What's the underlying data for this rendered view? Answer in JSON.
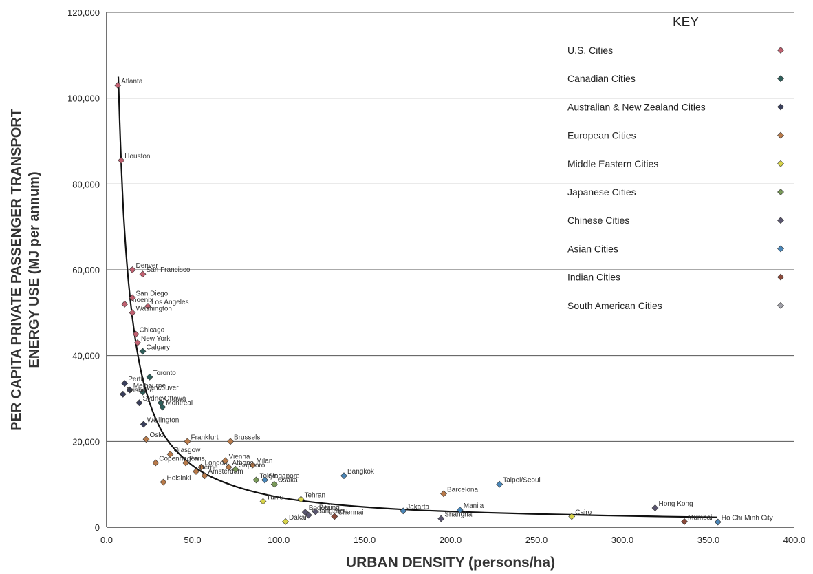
{
  "chart_data": {
    "type": "scatter",
    "xlabel": "URBAN DENSITY (persons/ha)",
    "ylabel_line1": "PER CAPITA PRIVATE PASSENGER TRANSPORT",
    "ylabel_line2": "ENERGY USE (MJ per annum)",
    "xlim": [
      0,
      400
    ],
    "ylim": [
      0,
      120000
    ],
    "x_ticks": [
      "0.0",
      "50.0",
      "100.0",
      "150.0",
      "200.0",
      "250.0",
      "300.0",
      "350.0",
      "400.0"
    ],
    "y_ticks": [
      "0",
      "20,000",
      "40,000",
      "60,000",
      "80,000",
      "100,000",
      "120,000"
    ],
    "grid": "horizontal",
    "legend_title": "KEY",
    "legend_position": "top-right",
    "series": [
      {
        "name": "U.S. Cities",
        "color": "#c06070"
      },
      {
        "name": "Canadian Cities",
        "color": "#2e5e5a"
      },
      {
        "name": "Australian & New Zealand Cities",
        "color": "#3a3f5c"
      },
      {
        "name": "European Cities",
        "color": "#b87a4a"
      },
      {
        "name": "Middle Eastern Cities",
        "color": "#d8d44a"
      },
      {
        "name": "Japanese Cities",
        "color": "#7a9a5a"
      },
      {
        "name": "Chinese Cities",
        "color": "#5a5670"
      },
      {
        "name": "Asian Cities",
        "color": "#4a86b8"
      },
      {
        "name": "Indian Cities",
        "color": "#8a4a3a"
      },
      {
        "name": "South American Cities",
        "color": "#a0a0a8"
      }
    ],
    "points": [
      {
        "label": "Atlanta",
        "x": 6.5,
        "y": 103000,
        "s": 0
      },
      {
        "label": "Houston",
        "x": 8.5,
        "y": 85500,
        "s": 0
      },
      {
        "label": "Denver",
        "x": 15,
        "y": 60000,
        "s": 0
      },
      {
        "label": "San Francisco",
        "x": 21,
        "y": 59000,
        "s": 0
      },
      {
        "label": "Phoenix",
        "x": 10.5,
        "y": 52000,
        "s": 0
      },
      {
        "label": "San Diego",
        "x": 15,
        "y": 53500,
        "s": 0
      },
      {
        "label": "Los Angeles",
        "x": 24,
        "y": 51500,
        "s": 0
      },
      {
        "label": "Washington",
        "x": 15,
        "y": 50000,
        "s": 0
      },
      {
        "label": "Chicago",
        "x": 17,
        "y": 45000,
        "s": 0
      },
      {
        "label": "New York",
        "x": 18,
        "y": 43000,
        "s": 0
      },
      {
        "label": "Calgary",
        "x": 21,
        "y": 41000,
        "s": 1
      },
      {
        "label": "Toronto",
        "x": 25,
        "y": 35000,
        "s": 1
      },
      {
        "label": "Vancouver",
        "x": 21,
        "y": 31500,
        "s": 1
      },
      {
        "label": "Ottawa",
        "x": 31.5,
        "y": 29000,
        "s": 1
      },
      {
        "label": "Montreal",
        "x": 32.5,
        "y": 28000,
        "s": 1
      },
      {
        "label": "Perth",
        "x": 10.5,
        "y": 33500,
        "s": 2
      },
      {
        "label": "Melbourne",
        "x": 13.5,
        "y": 32000,
        "s": 2
      },
      {
        "label": "Brisbane",
        "x": 9.5,
        "y": 31000,
        "s": 2
      },
      {
        "label": "Sydney",
        "x": 19,
        "y": 29000,
        "s": 2
      },
      {
        "label": "Wellington",
        "x": 21.5,
        "y": 24000,
        "s": 2
      },
      {
        "label": "Oslo",
        "x": 23,
        "y": 20500,
        "s": 3
      },
      {
        "label": "Frankfurt",
        "x": 47,
        "y": 20000,
        "s": 3
      },
      {
        "label": "Brussels",
        "x": 72,
        "y": 20000,
        "s": 3
      },
      {
        "label": "Glasgow",
        "x": 37,
        "y": 17000,
        "s": 3
      },
      {
        "label": "Copenhagen",
        "x": 28.5,
        "y": 15000,
        "s": 3
      },
      {
        "label": "Paris",
        "x": 46,
        "y": 15000,
        "s": 3
      },
      {
        "label": "London",
        "x": 55,
        "y": 14000,
        "s": 3
      },
      {
        "label": "Berne",
        "x": 52,
        "y": 13000,
        "s": 3
      },
      {
        "label": "Vienna",
        "x": 69,
        "y": 15500,
        "s": 3
      },
      {
        "label": "Athens",
        "x": 71,
        "y": 14000,
        "s": 3
      },
      {
        "label": "Milan",
        "x": 85,
        "y": 14500,
        "s": 3
      },
      {
        "label": "Amsterdam",
        "x": 57,
        "y": 12000,
        "s": 3
      },
      {
        "label": "Helsinki",
        "x": 33,
        "y": 10500,
        "s": 3
      },
      {
        "label": "Barcelona",
        "x": 196,
        "y": 7800,
        "s": 3
      },
      {
        "label": "Tunis",
        "x": 91,
        "y": 6000,
        "s": 4
      },
      {
        "label": "Tehran",
        "x": 113,
        "y": 6500,
        "s": 4
      },
      {
        "label": "Cairo",
        "x": 270.5,
        "y": 2500,
        "s": 4
      },
      {
        "label": "Dakar",
        "x": 104,
        "y": 1300,
        "s": 4
      },
      {
        "label": "Sapporo",
        "x": 75,
        "y": 13500,
        "s": 5
      },
      {
        "label": "Tokyo",
        "x": 87,
        "y": 11000,
        "s": 5
      },
      {
        "label": "Osaka",
        "x": 97.5,
        "y": 10000,
        "s": 5
      },
      {
        "label": "Bogota",
        "x": 115.5,
        "y": 3500,
        "s": 6
      },
      {
        "label": "Guangzhou",
        "x": 117.5,
        "y": 2800,
        "s": 6
      },
      {
        "label": "Beijing",
        "x": 121.5,
        "y": 3600,
        "s": 6
      },
      {
        "label": "Shanghai",
        "x": 194.5,
        "y": 2000,
        "s": 6
      },
      {
        "label": "Hong Kong",
        "x": 319,
        "y": 4500,
        "s": 6
      },
      {
        "label": "Singapore",
        "x": 92,
        "y": 11000,
        "s": 7
      },
      {
        "label": "Bangkok",
        "x": 138,
        "y": 12000,
        "s": 7
      },
      {
        "label": "Jakarta",
        "x": 172.5,
        "y": 3800,
        "s": 7
      },
      {
        "label": "Manila",
        "x": 205.5,
        "y": 4000,
        "s": 7
      },
      {
        "label": "Taipei/Seoul",
        "x": 228.5,
        "y": 10000,
        "s": 7
      },
      {
        "label": "Ho Chi Minh City",
        "x": 355.5,
        "y": 1200,
        "s": 7
      },
      {
        "label": "Chennai",
        "x": 132.5,
        "y": 2500,
        "s": 8
      },
      {
        "label": "Mumbai",
        "x": 336,
        "y": 1300,
        "s": 8
      }
    ],
    "trendline": [
      [
        6.8,
        105000
      ],
      [
        8,
        90000
      ],
      [
        10,
        72000
      ],
      [
        13,
        56000
      ],
      [
        17,
        43000
      ],
      [
        22,
        33000
      ],
      [
        30,
        24000
      ],
      [
        40,
        18000
      ],
      [
        55,
        13000
      ],
      [
        75,
        9500
      ],
      [
        100,
        7000
      ],
      [
        130,
        5400
      ],
      [
        170,
        4200
      ],
      [
        220,
        3400
      ],
      [
        270,
        2900
      ],
      [
        320,
        2500
      ],
      [
        355,
        2300
      ]
    ]
  }
}
